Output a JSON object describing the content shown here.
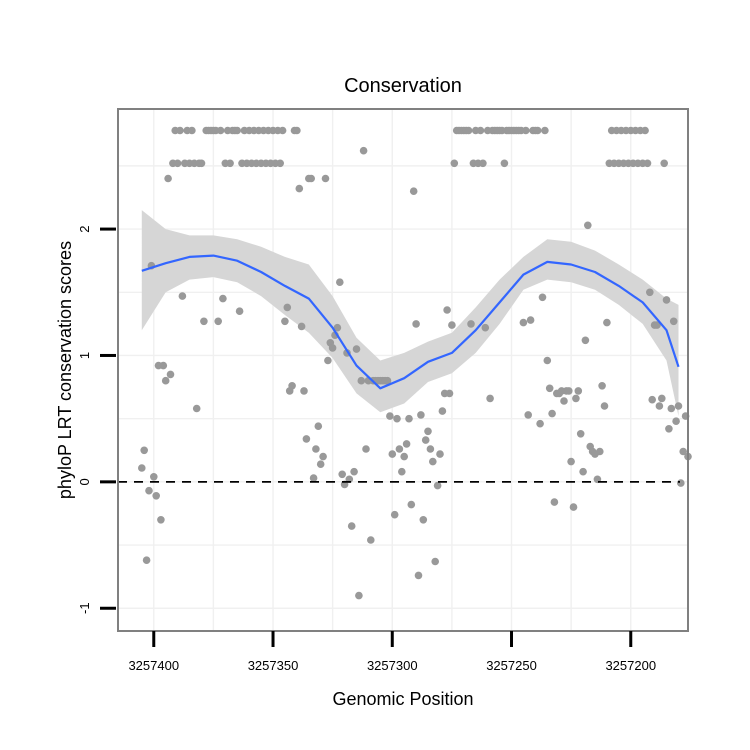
{
  "chart_data": {
    "type": "scatter",
    "title": "Conservation",
    "xlabel": "Genomic Position",
    "ylabel": "phyloP LRT conservation scores",
    "x_reversed": true,
    "xlim": [
      3257415,
      3257176
    ],
    "ylim": [
      -1.18,
      2.95
    ],
    "x_ticks": [
      3257400,
      3257350,
      3257300,
      3257250,
      3257200
    ],
    "x_tick_labels": [
      "3257400",
      "3257350",
      "3257300",
      "3257250",
      "3257200"
    ],
    "y_ticks": [
      -1,
      0,
      1,
      2
    ],
    "y_tick_labels": [
      "-1",
      "0",
      "1",
      "2"
    ],
    "grid": true,
    "reference_line": {
      "y": 0,
      "style": "dashed"
    },
    "colors": {
      "points": "#999999",
      "smooth": "#3366ff",
      "ribbon": "#d6d6d6",
      "panel_border": "#808080",
      "grid": "#f0f0f0"
    },
    "series": [
      {
        "kind": "points",
        "points": [
          [
            3257405,
            0.11
          ],
          [
            3257404,
            0.25
          ],
          [
            3257403,
            -0.62
          ],
          [
            3257402,
            -0.07
          ],
          [
            3257401,
            1.71
          ],
          [
            3257400,
            0.04
          ],
          [
            3257399,
            -0.11
          ],
          [
            3257398,
            0.92
          ],
          [
            3257397,
            -0.3
          ],
          [
            3257396,
            0.92
          ],
          [
            3257395,
            0.8
          ],
          [
            3257394,
            2.4
          ],
          [
            3257393,
            0.85
          ],
          [
            3257392,
            2.52
          ],
          [
            3257391,
            2.78
          ],
          [
            3257390,
            2.52
          ],
          [
            3257389,
            2.78
          ],
          [
            3257388,
            1.47
          ],
          [
            3257387,
            2.52
          ],
          [
            3257386,
            2.78
          ],
          [
            3257385,
            2.52
          ],
          [
            3257384,
            2.78
          ],
          [
            3257383,
            2.52
          ],
          [
            3257382,
            0.58
          ],
          [
            3257381,
            2.52
          ],
          [
            3257380,
            2.52
          ],
          [
            3257379,
            1.27
          ],
          [
            3257378,
            2.78
          ],
          [
            3257377,
            2.78
          ],
          [
            3257376,
            2.78
          ],
          [
            3257375,
            2.78
          ],
          [
            3257374,
            2.78
          ],
          [
            3257373,
            1.27
          ],
          [
            3257372,
            2.78
          ],
          [
            3257371,
            1.45
          ],
          [
            3257370,
            2.52
          ],
          [
            3257369,
            2.78
          ],
          [
            3257368,
            2.52
          ],
          [
            3257367,
            2.78
          ],
          [
            3257366,
            2.78
          ],
          [
            3257365,
            2.78
          ],
          [
            3257364,
            1.35
          ],
          [
            3257363,
            2.52
          ],
          [
            3257362,
            2.78
          ],
          [
            3257361,
            2.52
          ],
          [
            3257360,
            2.78
          ],
          [
            3257359,
            2.52
          ],
          [
            3257358,
            2.78
          ],
          [
            3257357,
            2.52
          ],
          [
            3257356,
            2.78
          ],
          [
            3257355,
            2.52
          ],
          [
            3257354,
            2.78
          ],
          [
            3257353,
            2.52
          ],
          [
            3257352,
            2.78
          ],
          [
            3257351,
            2.52
          ],
          [
            3257350,
            2.78
          ],
          [
            3257349,
            2.52
          ],
          [
            3257348,
            2.78
          ],
          [
            3257347,
            2.52
          ],
          [
            3257346,
            2.78
          ],
          [
            3257345,
            1.27
          ],
          [
            3257344,
            1.38
          ],
          [
            3257343,
            0.72
          ],
          [
            3257342,
            0.76
          ],
          [
            3257341,
            2.78
          ],
          [
            3257340,
            2.78
          ],
          [
            3257339,
            2.32
          ],
          [
            3257338,
            1.23
          ],
          [
            3257337,
            0.72
          ],
          [
            3257336,
            0.34
          ],
          [
            3257335,
            2.4
          ],
          [
            3257334,
            2.4
          ],
          [
            3257333,
            0.03
          ],
          [
            3257332,
            0.26
          ],
          [
            3257331,
            0.44
          ],
          [
            3257330,
            0.14
          ],
          [
            3257329,
            0.2
          ],
          [
            3257328,
            2.4
          ],
          [
            3257327,
            0.96
          ],
          [
            3257326,
            1.1
          ],
          [
            3257325,
            1.06
          ],
          [
            3257324,
            1.16
          ],
          [
            3257323,
            1.22
          ],
          [
            3257322,
            1.58
          ],
          [
            3257321,
            0.06
          ],
          [
            3257320,
            -0.02
          ],
          [
            3257319,
            1.02
          ],
          [
            3257318,
            0.02
          ],
          [
            3257317,
            -0.35
          ],
          [
            3257316,
            0.08
          ],
          [
            3257315,
            1.05
          ],
          [
            3257314,
            -0.9
          ],
          [
            3257313,
            0.8
          ],
          [
            3257312,
            2.62
          ],
          [
            3257311,
            0.26
          ],
          [
            3257310,
            0.8
          ],
          [
            3257309,
            -0.46
          ],
          [
            3257308,
            0.8
          ],
          [
            3257307,
            0.8
          ],
          [
            3257306,
            0.8
          ],
          [
            3257305,
            0.8
          ],
          [
            3257304,
            0.8
          ],
          [
            3257303,
            0.8
          ],
          [
            3257302,
            0.8
          ],
          [
            3257301,
            0.52
          ],
          [
            3257300,
            0.22
          ],
          [
            3257299,
            -0.26
          ],
          [
            3257298,
            0.5
          ],
          [
            3257297,
            0.26
          ],
          [
            3257296,
            0.08
          ],
          [
            3257295,
            0.2
          ],
          [
            3257294,
            0.3
          ],
          [
            3257293,
            0.5
          ],
          [
            3257292,
            -0.18
          ],
          [
            3257291,
            2.3
          ],
          [
            3257290,
            1.25
          ],
          [
            3257289,
            -0.74
          ],
          [
            3257288,
            0.53
          ],
          [
            3257287,
            -0.3
          ],
          [
            3257286,
            0.33
          ],
          [
            3257285,
            0.4
          ],
          [
            3257284,
            0.26
          ],
          [
            3257283,
            0.16
          ],
          [
            3257282,
            -0.63
          ],
          [
            3257281,
            -0.03
          ],
          [
            3257280,
            0.22
          ],
          [
            3257279,
            0.56
          ],
          [
            3257278,
            0.7
          ],
          [
            3257277,
            1.36
          ],
          [
            3257276,
            0.7
          ],
          [
            3257275,
            1.24
          ],
          [
            3257274,
            2.52
          ],
          [
            3257273,
            2.78
          ],
          [
            3257272,
            2.78
          ],
          [
            3257271,
            2.78
          ],
          [
            3257270,
            2.78
          ],
          [
            3257269,
            2.78
          ],
          [
            3257268,
            2.78
          ],
          [
            3257267,
            1.25
          ],
          [
            3257266,
            2.52
          ],
          [
            3257265,
            2.78
          ],
          [
            3257264,
            2.52
          ],
          [
            3257263,
            2.78
          ],
          [
            3257262,
            2.52
          ],
          [
            3257261,
            1.22
          ],
          [
            3257260,
            2.78
          ],
          [
            3257259,
            0.66
          ],
          [
            3257258,
            2.78
          ],
          [
            3257257,
            2.78
          ],
          [
            3257256,
            2.78
          ],
          [
            3257255,
            2.78
          ],
          [
            3257254,
            2.78
          ],
          [
            3257253,
            2.52
          ],
          [
            3257252,
            2.78
          ],
          [
            3257251,
            2.78
          ],
          [
            3257250,
            2.78
          ],
          [
            3257249,
            2.78
          ],
          [
            3257248,
            2.78
          ],
          [
            3257247,
            2.78
          ],
          [
            3257246,
            2.78
          ],
          [
            3257245,
            1.26
          ],
          [
            3257244,
            2.78
          ],
          [
            3257243,
            0.53
          ],
          [
            3257242,
            1.28
          ],
          [
            3257241,
            2.78
          ],
          [
            3257240,
            2.78
          ],
          [
            3257239,
            2.78
          ],
          [
            3257238,
            0.46
          ],
          [
            3257237,
            1.46
          ],
          [
            3257236,
            2.78
          ],
          [
            3257235,
            0.96
          ],
          [
            3257234,
            0.74
          ],
          [
            3257233,
            0.54
          ],
          [
            3257232,
            -0.16
          ],
          [
            3257231,
            0.7
          ],
          [
            3257230,
            0.7
          ],
          [
            3257229,
            0.72
          ],
          [
            3257228,
            0.64
          ],
          [
            3257227,
            0.72
          ],
          [
            3257226,
            0.72
          ],
          [
            3257225,
            0.16
          ],
          [
            3257224,
            -0.2
          ],
          [
            3257223,
            0.66
          ],
          [
            3257222,
            0.72
          ],
          [
            3257221,
            0.38
          ],
          [
            3257220,
            0.08
          ],
          [
            3257219,
            1.12
          ],
          [
            3257218,
            2.03
          ],
          [
            3257217,
            0.28
          ],
          [
            3257216,
            0.24
          ],
          [
            3257215,
            0.22
          ],
          [
            3257214,
            0.02
          ],
          [
            3257213,
            0.24
          ],
          [
            3257212,
            0.76
          ],
          [
            3257211,
            0.6
          ],
          [
            3257210,
            1.26
          ],
          [
            3257209,
            2.52
          ],
          [
            3257208,
            2.78
          ],
          [
            3257207,
            2.52
          ],
          [
            3257206,
            2.78
          ],
          [
            3257205,
            2.52
          ],
          [
            3257204,
            2.78
          ],
          [
            3257203,
            2.52
          ],
          [
            3257202,
            2.78
          ],
          [
            3257201,
            2.52
          ],
          [
            3257200,
            2.78
          ],
          [
            3257199,
            2.52
          ],
          [
            3257198,
            2.78
          ],
          [
            3257197,
            2.52
          ],
          [
            3257196,
            2.78
          ],
          [
            3257195,
            2.52
          ],
          [
            3257194,
            2.78
          ],
          [
            3257193,
            2.52
          ],
          [
            3257192,
            1.5
          ],
          [
            3257191,
            0.65
          ],
          [
            3257190,
            1.24
          ],
          [
            3257189,
            1.24
          ],
          [
            3257188,
            0.6
          ],
          [
            3257187,
            0.66
          ],
          [
            3257186,
            2.52
          ],
          [
            3257185,
            1.44
          ],
          [
            3257184,
            0.42
          ],
          [
            3257183,
            0.58
          ],
          [
            3257182,
            1.27
          ],
          [
            3257181,
            0.48
          ],
          [
            3257180,
            0.6
          ],
          [
            3257179,
            -0.01
          ],
          [
            3257178,
            0.24
          ],
          [
            3257177,
            0.52
          ],
          [
            3257176,
            0.2
          ]
        ]
      },
      {
        "kind": "smooth",
        "x": [
          3257405,
          3257395,
          3257385,
          3257375,
          3257365,
          3257355,
          3257345,
          3257335,
          3257325,
          3257315,
          3257305,
          3257295,
          3257285,
          3257275,
          3257265,
          3257255,
          3257245,
          3257235,
          3257225,
          3257215,
          3257205,
          3257195,
          3257185,
          3257180
        ],
        "y": [
          1.67,
          1.73,
          1.78,
          1.79,
          1.75,
          1.66,
          1.55,
          1.45,
          1.22,
          0.92,
          0.74,
          0.82,
          0.95,
          1.02,
          1.2,
          1.42,
          1.64,
          1.74,
          1.72,
          1.66,
          1.55,
          1.42,
          1.2,
          0.91
        ],
        "lower": [
          1.2,
          1.5,
          1.6,
          1.62,
          1.58,
          1.47,
          1.32,
          1.18,
          0.98,
          0.7,
          0.55,
          0.62,
          0.79,
          0.86,
          1.02,
          1.25,
          1.52,
          1.6,
          1.58,
          1.52,
          1.4,
          1.25,
          0.96,
          0.52
        ],
        "upper": [
          2.15,
          2.0,
          1.95,
          1.95,
          1.92,
          1.86,
          1.78,
          1.72,
          1.47,
          1.14,
          0.96,
          1.02,
          1.11,
          1.18,
          1.38,
          1.6,
          1.78,
          1.92,
          1.9,
          1.83,
          1.72,
          1.6,
          1.45,
          1.4
        ]
      }
    ]
  }
}
